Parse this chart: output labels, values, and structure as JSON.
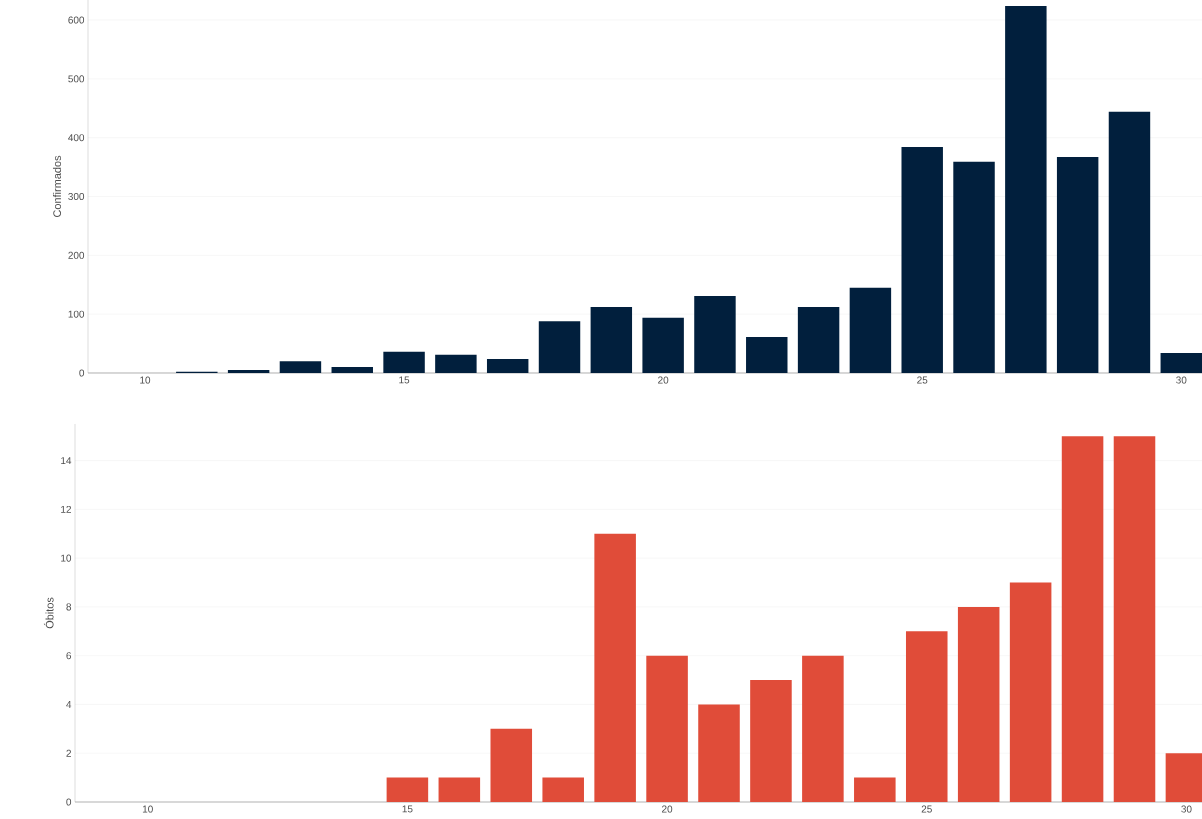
{
  "chart_data": [
    {
      "type": "bar",
      "ylabel": "Confirmados",
      "color": "#011f3d",
      "grid": "y",
      "x": [
        11,
        12,
        13,
        14,
        15,
        16,
        17,
        18,
        19,
        20,
        21,
        22,
        23,
        24,
        25,
        26,
        27,
        28,
        29,
        30
      ],
      "values": [
        2,
        5,
        20,
        10,
        36,
        31,
        24,
        88,
        112,
        94,
        131,
        61,
        112,
        145,
        384,
        359,
        624,
        367,
        444,
        34
      ],
      "xlim": [
        8.9,
        30.4
      ],
      "xticks": [
        10,
        15,
        20,
        25,
        30
      ],
      "ylim": [
        0,
        634
      ],
      "yticks": [
        0,
        100,
        200,
        300,
        400,
        500,
        600
      ]
    },
    {
      "type": "bar",
      "ylabel": "Óbitos",
      "color": "#e04c39",
      "grid": "y",
      "x": [
        15,
        16,
        17,
        18,
        19,
        20,
        21,
        22,
        23,
        24,
        25,
        26,
        27,
        28,
        29,
        30
      ],
      "values": [
        1,
        1,
        3,
        1,
        11,
        6,
        4,
        5,
        6,
        1,
        7,
        8,
        9,
        15,
        15,
        2
      ],
      "xlim": [
        8.6,
        30.3
      ],
      "xticks": [
        10,
        15,
        20,
        25,
        30
      ],
      "ylim": [
        0,
        15.5
      ],
      "yticks": [
        0,
        2,
        4,
        6,
        8,
        10,
        12,
        14
      ]
    }
  ]
}
